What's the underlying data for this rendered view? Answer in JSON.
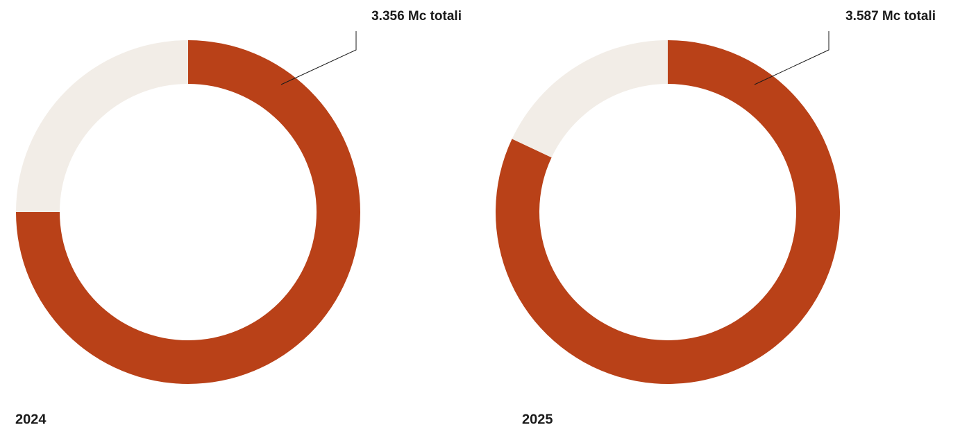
{
  "chart_data": [
    {
      "type": "donut",
      "title": "2024",
      "annotation": "3.356 Mc totali",
      "values": [
        75,
        25
      ],
      "colors": [
        "#b94118",
        "#f2ede7"
      ]
    },
    {
      "type": "donut",
      "title": "2025",
      "annotation": "3.587 Mc totali",
      "values": [
        82,
        18
      ],
      "colors": [
        "#b94118",
        "#f2ede7"
      ]
    }
  ]
}
